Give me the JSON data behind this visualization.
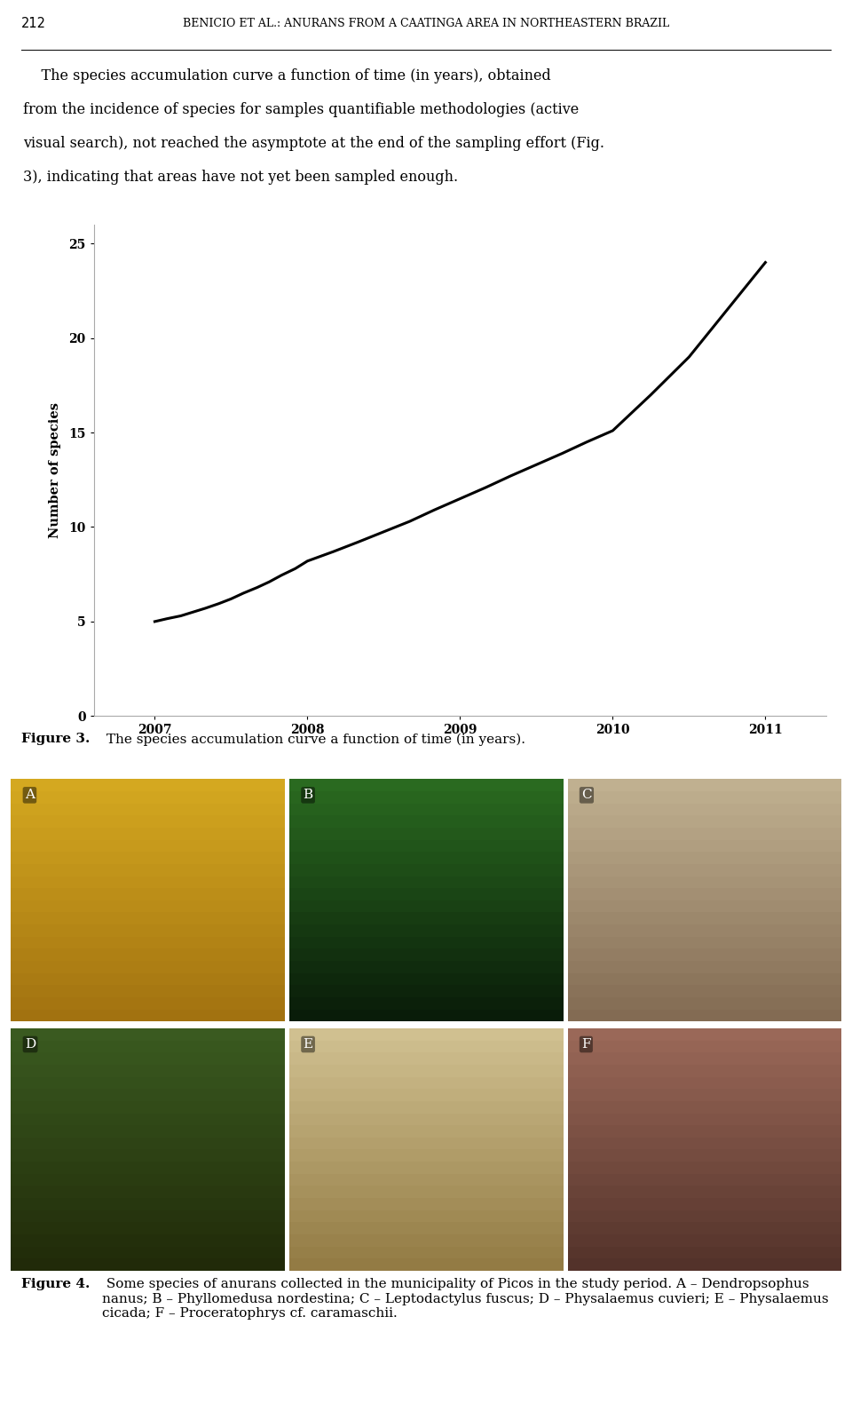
{
  "page_width": 9.6,
  "page_height": 15.81,
  "dpi": 100,
  "background_color": "#ffffff",
  "header_page_num": "212",
  "header_title_plain": "BENICIO ET AL.: ANURANS FROM A CAATINGA AREA IN NORTHEASTERN BRAZIL",
  "paragraph_text_line1": "    The species accumulation curve a function of time (in years), obtained",
  "paragraph_text_line2": "from the incidence of species for samples quantifiable methodologies (active",
  "paragraph_text_line3": "visual search), not reached the asymptote at the end of the sampling effort (Fig.",
  "paragraph_text_line4": "3), indicating that areas have not yet been sampled enough.",
  "x_data": [
    2007.0,
    2007.08,
    2007.17,
    2007.25,
    2007.33,
    2007.42,
    2007.5,
    2007.58,
    2007.67,
    2007.75,
    2007.83,
    2007.92,
    2008.0,
    2008.17,
    2008.33,
    2008.5,
    2008.67,
    2008.83,
    2009.0,
    2009.17,
    2009.33,
    2009.5,
    2009.67,
    2009.83,
    2010.0,
    2010.25,
    2010.5,
    2010.75,
    2011.0
  ],
  "y_data": [
    5.0,
    5.15,
    5.3,
    5.5,
    5.7,
    5.95,
    6.2,
    6.5,
    6.8,
    7.1,
    7.45,
    7.8,
    8.2,
    8.7,
    9.2,
    9.75,
    10.3,
    10.9,
    11.5,
    12.1,
    12.7,
    13.3,
    13.9,
    14.5,
    15.1,
    17.0,
    19.0,
    21.5,
    24.0
  ],
  "ylabel": "Number of species",
  "xlim": [
    2006.6,
    2011.4
  ],
  "ylim": [
    0,
    26
  ],
  "yticks": [
    0,
    5,
    10,
    15,
    20,
    25
  ],
  "xticks": [
    2007,
    2008,
    2009,
    2010,
    2011
  ],
  "line_color": "#000000",
  "line_width": 2.2,
  "axis_color": "#aaaaaa",
  "tick_label_fontsize": 10,
  "axis_label_fontsize": 10.5,
  "figure3_caption_bold": "Figure 3.",
  "figure3_caption_rest": " The species accumulation curve a function of time (in years).",
  "figure4_caption_bold": "Figure 4.",
  "figure4_caption_rest": " Some species of anurans collected in the municipality of Picos in the study period. A – Dendropsophus nanus; B – Phyllomedusa nordestina; C – Leptodactylus fuscus; D – Physalaemus cuvieri; E – Physalaemus cicada; F – Proceratophrys cf. caramaschii.",
  "photo_labels": [
    "A",
    "B",
    "C",
    "D",
    "E",
    "F"
  ],
  "photo_colors": [
    "#7aaa30",
    "#1a4a10",
    "#a09070",
    "#4a6a20",
    "#b8a878",
    "#7a5040"
  ],
  "photo_gradient_top": [
    "#d4a820",
    "#2a6a20",
    "#c0b090",
    "#3a5a20",
    "#d0c090",
    "#9a6858"
  ],
  "photo_gradient_bot": [
    "#a07010",
    "#081808",
    "#806850",
    "#202808",
    "#907840",
    "#503028"
  ],
  "label_bg": "#00000088"
}
